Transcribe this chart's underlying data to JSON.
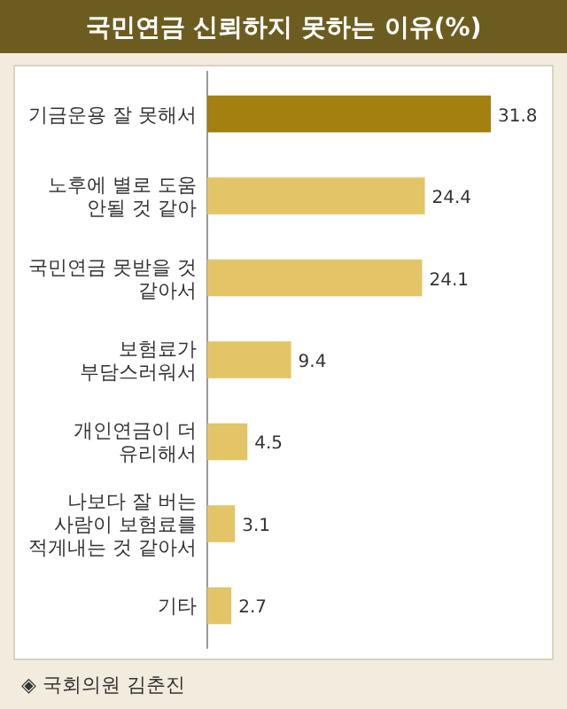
{
  "chart_data": {
    "type": "bar",
    "orientation": "horizontal",
    "title": "국민연금 신뢰하지 못하는 이유(%)",
    "categories": [
      "기금운용 잘 못해서",
      "노후에 별로 도움 안될 것 같아",
      "국민연금 못받을 것 같아서",
      "보험료가 부담스러워서",
      "개인연금이 더 유리해서",
      "나보다 잘 버는 사람이 보험료를 적게내는 것 같아서",
      "기타"
    ],
    "values": [
      31.8,
      24.4,
      24.1,
      9.4,
      4.5,
      3.1,
      2.7
    ],
    "colors": [
      "#a3800f",
      "#e3c567",
      "#e3c567",
      "#e3c567",
      "#e3c567",
      "#e3c567",
      "#e3c567"
    ],
    "data_labels": true,
    "annotations": [
      "◈ 국회의원 김춘진"
    ]
  }
}
